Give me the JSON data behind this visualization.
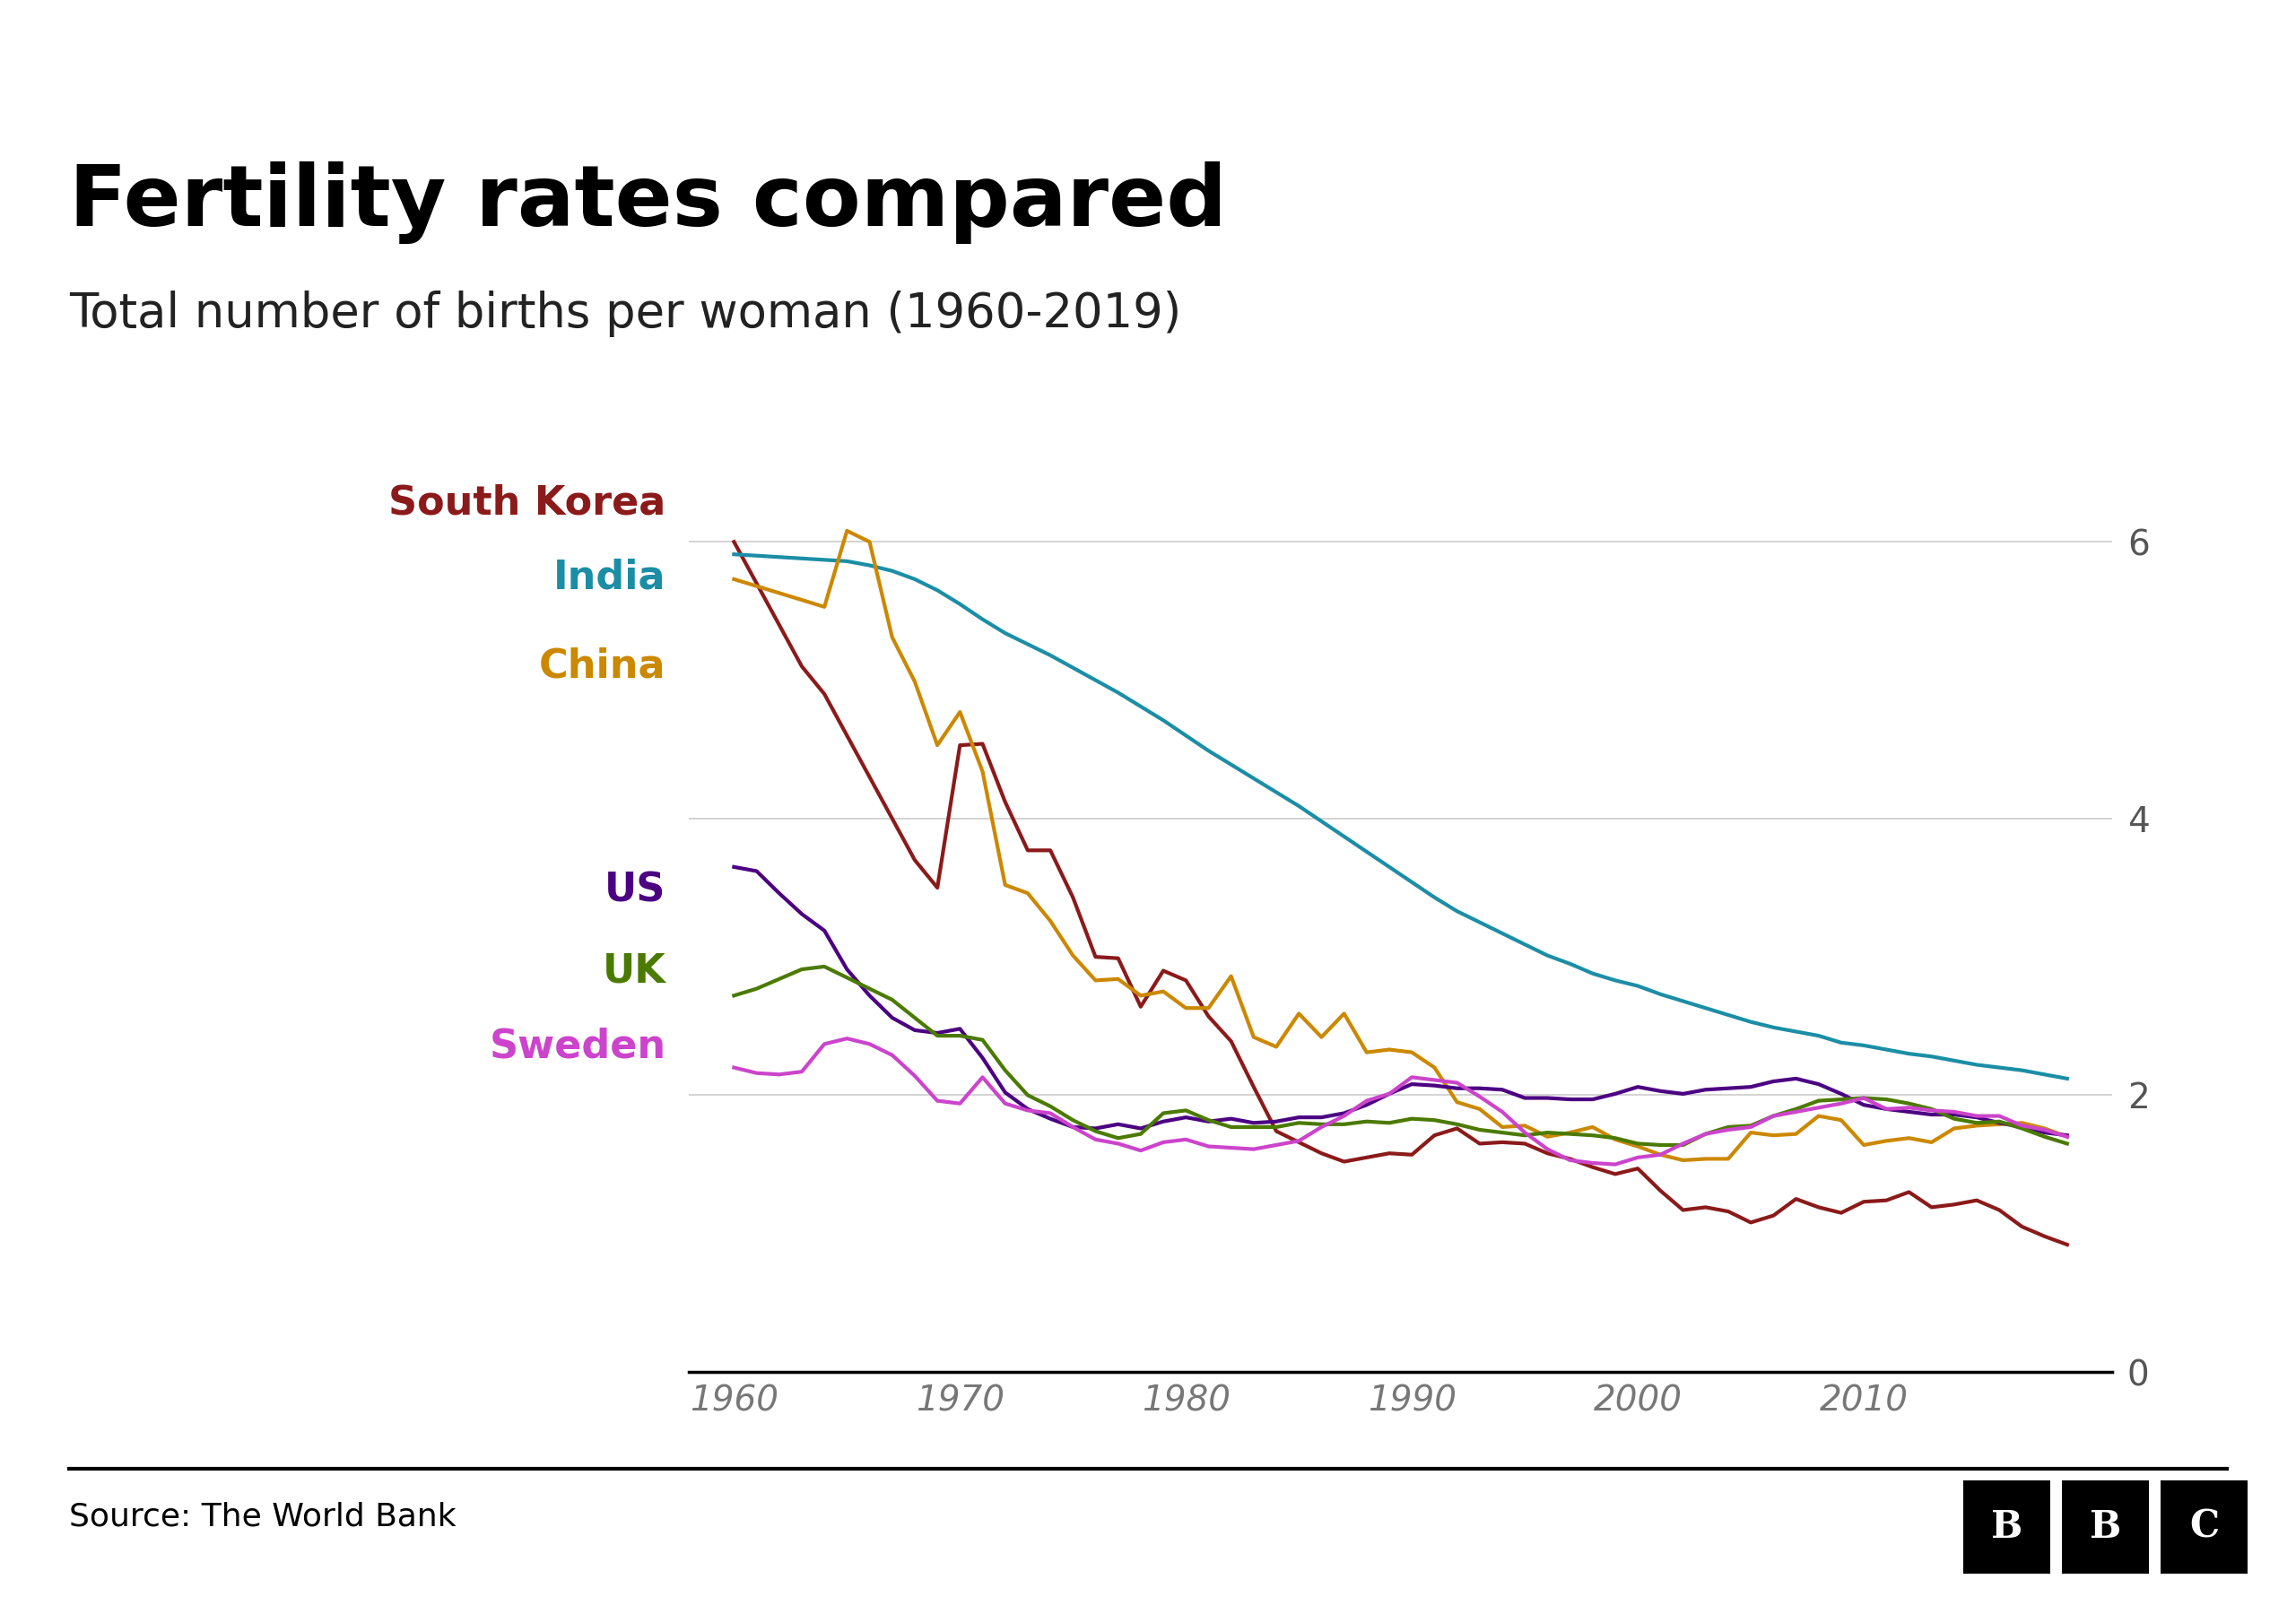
{
  "title": "Fertility rates compared",
  "subtitle": "Total number of births per woman (1960-2019)",
  "source": "Source: The World Bank",
  "years": [
    1960,
    1961,
    1962,
    1963,
    1964,
    1965,
    1966,
    1967,
    1968,
    1969,
    1970,
    1971,
    1972,
    1973,
    1974,
    1975,
    1976,
    1977,
    1978,
    1979,
    1980,
    1981,
    1982,
    1983,
    1984,
    1985,
    1986,
    1987,
    1988,
    1989,
    1990,
    1991,
    1992,
    1993,
    1994,
    1995,
    1996,
    1997,
    1998,
    1999,
    2000,
    2001,
    2002,
    2003,
    2004,
    2005,
    2006,
    2007,
    2008,
    2009,
    2010,
    2011,
    2012,
    2013,
    2014,
    2015,
    2016,
    2017,
    2018,
    2019
  ],
  "south_korea": [
    6.0,
    5.7,
    5.4,
    5.1,
    4.9,
    4.6,
    4.3,
    4.0,
    3.7,
    3.5,
    4.53,
    4.54,
    4.12,
    3.77,
    3.77,
    3.43,
    3.0,
    2.99,
    2.64,
    2.9,
    2.83,
    2.57,
    2.39,
    2.06,
    1.74,
    1.66,
    1.58,
    1.52,
    1.55,
    1.58,
    1.57,
    1.71,
    1.76,
    1.65,
    1.66,
    1.65,
    1.58,
    1.54,
    1.48,
    1.43,
    1.47,
    1.31,
    1.17,
    1.19,
    1.16,
    1.08,
    1.13,
    1.25,
    1.19,
    1.15,
    1.23,
    1.24,
    1.3,
    1.19,
    1.21,
    1.24,
    1.17,
    1.05,
    0.98,
    0.92
  ],
  "india": [
    5.91,
    5.9,
    5.89,
    5.88,
    5.87,
    5.86,
    5.83,
    5.79,
    5.73,
    5.65,
    5.55,
    5.44,
    5.34,
    5.26,
    5.18,
    5.09,
    5.0,
    4.91,
    4.81,
    4.71,
    4.6,
    4.49,
    4.39,
    4.29,
    4.19,
    4.09,
    3.98,
    3.87,
    3.76,
    3.65,
    3.54,
    3.43,
    3.33,
    3.25,
    3.17,
    3.09,
    3.01,
    2.95,
    2.88,
    2.83,
    2.79,
    2.73,
    2.68,
    2.63,
    2.58,
    2.53,
    2.49,
    2.46,
    2.43,
    2.38,
    2.36,
    2.33,
    2.3,
    2.28,
    2.25,
    2.22,
    2.2,
    2.18,
    2.15,
    2.12
  ],
  "china": [
    5.73,
    5.68,
    5.63,
    5.58,
    5.53,
    6.08,
    6.0,
    5.31,
    4.99,
    4.53,
    4.77,
    4.34,
    3.52,
    3.46,
    3.26,
    3.01,
    2.83,
    2.84,
    2.72,
    2.75,
    2.63,
    2.63,
    2.86,
    2.42,
    2.35,
    2.59,
    2.42,
    2.59,
    2.31,
    2.33,
    2.31,
    2.2,
    1.95,
    1.9,
    1.77,
    1.78,
    1.7,
    1.73,
    1.77,
    1.68,
    1.63,
    1.57,
    1.53,
    1.54,
    1.54,
    1.73,
    1.71,
    1.72,
    1.85,
    1.82,
    1.64,
    1.67,
    1.69,
    1.66,
    1.76,
    1.78,
    1.79,
    1.8,
    1.76,
    1.7
  ],
  "us": [
    3.65,
    3.62,
    3.46,
    3.31,
    3.19,
    2.91,
    2.72,
    2.56,
    2.47,
    2.45,
    2.48,
    2.27,
    2.02,
    1.9,
    1.83,
    1.77,
    1.76,
    1.79,
    1.76,
    1.81,
    1.84,
    1.81,
    1.83,
    1.8,
    1.81,
    1.84,
    1.84,
    1.87,
    1.93,
    2.01,
    2.08,
    2.07,
    2.05,
    2.05,
    2.04,
    1.98,
    1.98,
    1.97,
    1.97,
    2.01,
    2.06,
    2.03,
    2.01,
    2.04,
    2.05,
    2.06,
    2.1,
    2.12,
    2.08,
    2.01,
    1.93,
    1.9,
    1.88,
    1.86,
    1.86,
    1.84,
    1.8,
    1.77,
    1.73,
    1.71
  ],
  "uk": [
    2.72,
    2.77,
    2.84,
    2.91,
    2.93,
    2.85,
    2.77,
    2.69,
    2.56,
    2.43,
    2.43,
    2.4,
    2.18,
    2.0,
    1.92,
    1.82,
    1.74,
    1.69,
    1.72,
    1.87,
    1.89,
    1.82,
    1.77,
    1.77,
    1.77,
    1.8,
    1.79,
    1.79,
    1.81,
    1.8,
    1.83,
    1.82,
    1.79,
    1.75,
    1.73,
    1.71,
    1.73,
    1.72,
    1.71,
    1.69,
    1.65,
    1.64,
    1.64,
    1.72,
    1.77,
    1.78,
    1.85,
    1.9,
    1.96,
    1.97,
    1.98,
    1.97,
    1.94,
    1.9,
    1.83,
    1.8,
    1.81,
    1.76,
    1.7,
    1.65
  ],
  "sweden": [
    2.2,
    2.16,
    2.15,
    2.17,
    2.37,
    2.41,
    2.37,
    2.29,
    2.14,
    1.96,
    1.94,
    2.13,
    1.94,
    1.89,
    1.87,
    1.77,
    1.68,
    1.65,
    1.6,
    1.66,
    1.68,
    1.63,
    1.62,
    1.61,
    1.64,
    1.67,
    1.77,
    1.85,
    1.96,
    2.01,
    2.13,
    2.11,
    2.09,
    1.99,
    1.88,
    1.73,
    1.61,
    1.53,
    1.51,
    1.5,
    1.55,
    1.57,
    1.65,
    1.72,
    1.75,
    1.77,
    1.85,
    1.88,
    1.91,
    1.94,
    1.98,
    1.9,
    1.91,
    1.89,
    1.88,
    1.85,
    1.85,
    1.78,
    1.75,
    1.7
  ],
  "colors": {
    "south_korea": "#8B1A1A",
    "india": "#1B8EA6",
    "china": "#CC8800",
    "us": "#4B0082",
    "uk": "#4B7A00",
    "sweden": "#CC44CC"
  },
  "line_width": 3.0,
  "ylim": [
    0,
    7
  ],
  "yticks": [
    0,
    2,
    4,
    6
  ],
  "xlim": [
    1958,
    2021
  ],
  "xticks": [
    1960,
    1970,
    1980,
    1990,
    2000,
    2010
  ],
  "background_color": "#ffffff",
  "grid_color": "#cccccc"
}
